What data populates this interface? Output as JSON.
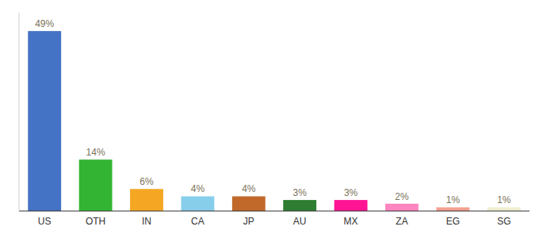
{
  "chart_data": {
    "type": "bar",
    "categories": [
      "US",
      "OTH",
      "IN",
      "CA",
      "JP",
      "AU",
      "MX",
      "ZA",
      "EG",
      "SG"
    ],
    "values": [
      49,
      14,
      6,
      4,
      4,
      3,
      3,
      2,
      1,
      1
    ],
    "value_labels": [
      "49%",
      "14%",
      "6%",
      "4%",
      "4%",
      "3%",
      "3%",
      "2%",
      "1%",
      "1%"
    ],
    "colors": [
      "#4472c4",
      "#33b533",
      "#f5a623",
      "#87ceeb",
      "#c0692a",
      "#2e7d32",
      "#ff1493",
      "#ff85c0",
      "#f4a090",
      "#f0eed0"
    ],
    "ylim": [
      0,
      54
    ],
    "data_labels": true,
    "tick_labels": "x",
    "grid": false
  }
}
